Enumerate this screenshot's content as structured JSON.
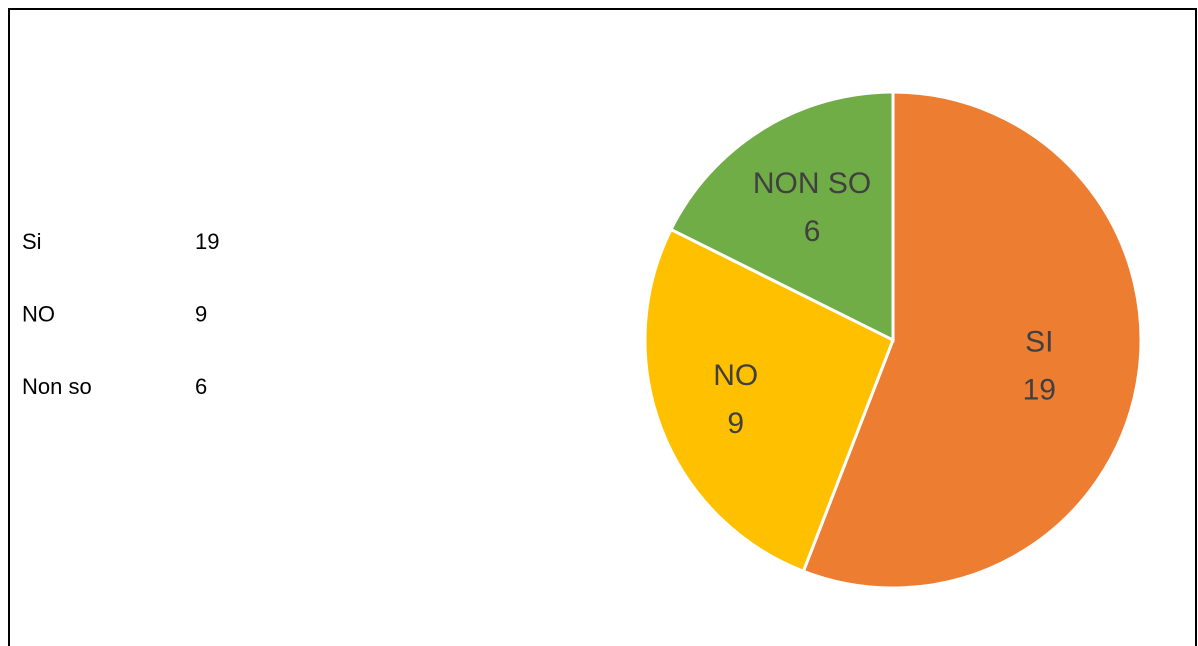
{
  "table": {
    "rows": [
      [
        "Si",
        "19"
      ],
      [
        "NO",
        "9"
      ],
      [
        "Non so",
        "6"
      ]
    ]
  },
  "chart_data": {
    "type": "pie",
    "categories": [
      "SI",
      "NO",
      "NON SO"
    ],
    "values": [
      19,
      9,
      6
    ],
    "colors": [
      "#ed7d31",
      "#ffc000",
      "#70ad47"
    ]
  }
}
